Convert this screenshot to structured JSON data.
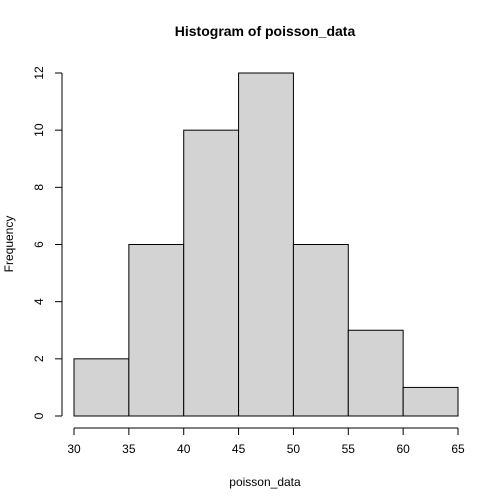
{
  "chart_data": {
    "type": "histogram",
    "title": "Histogram of poisson_data",
    "xlabel": "poisson_data",
    "ylabel": "Frequency",
    "bins": [
      {
        "start": 30,
        "end": 35,
        "count": 2
      },
      {
        "start": 35,
        "end": 40,
        "count": 6
      },
      {
        "start": 40,
        "end": 45,
        "count": 10
      },
      {
        "start": 45,
        "end": 50,
        "count": 12
      },
      {
        "start": 50,
        "end": 55,
        "count": 6
      },
      {
        "start": 55,
        "end": 60,
        "count": 3
      },
      {
        "start": 60,
        "end": 65,
        "count": 1
      }
    ],
    "x_ticks": [
      30,
      35,
      40,
      45,
      50,
      55,
      60,
      65
    ],
    "y_ticks": [
      0,
      2,
      4,
      6,
      8,
      10,
      12
    ],
    "xlim": [
      30,
      65
    ],
    "ylim": [
      0,
      12
    ],
    "bar_color": "#d3d3d3",
    "grid": false,
    "legend": "none"
  }
}
